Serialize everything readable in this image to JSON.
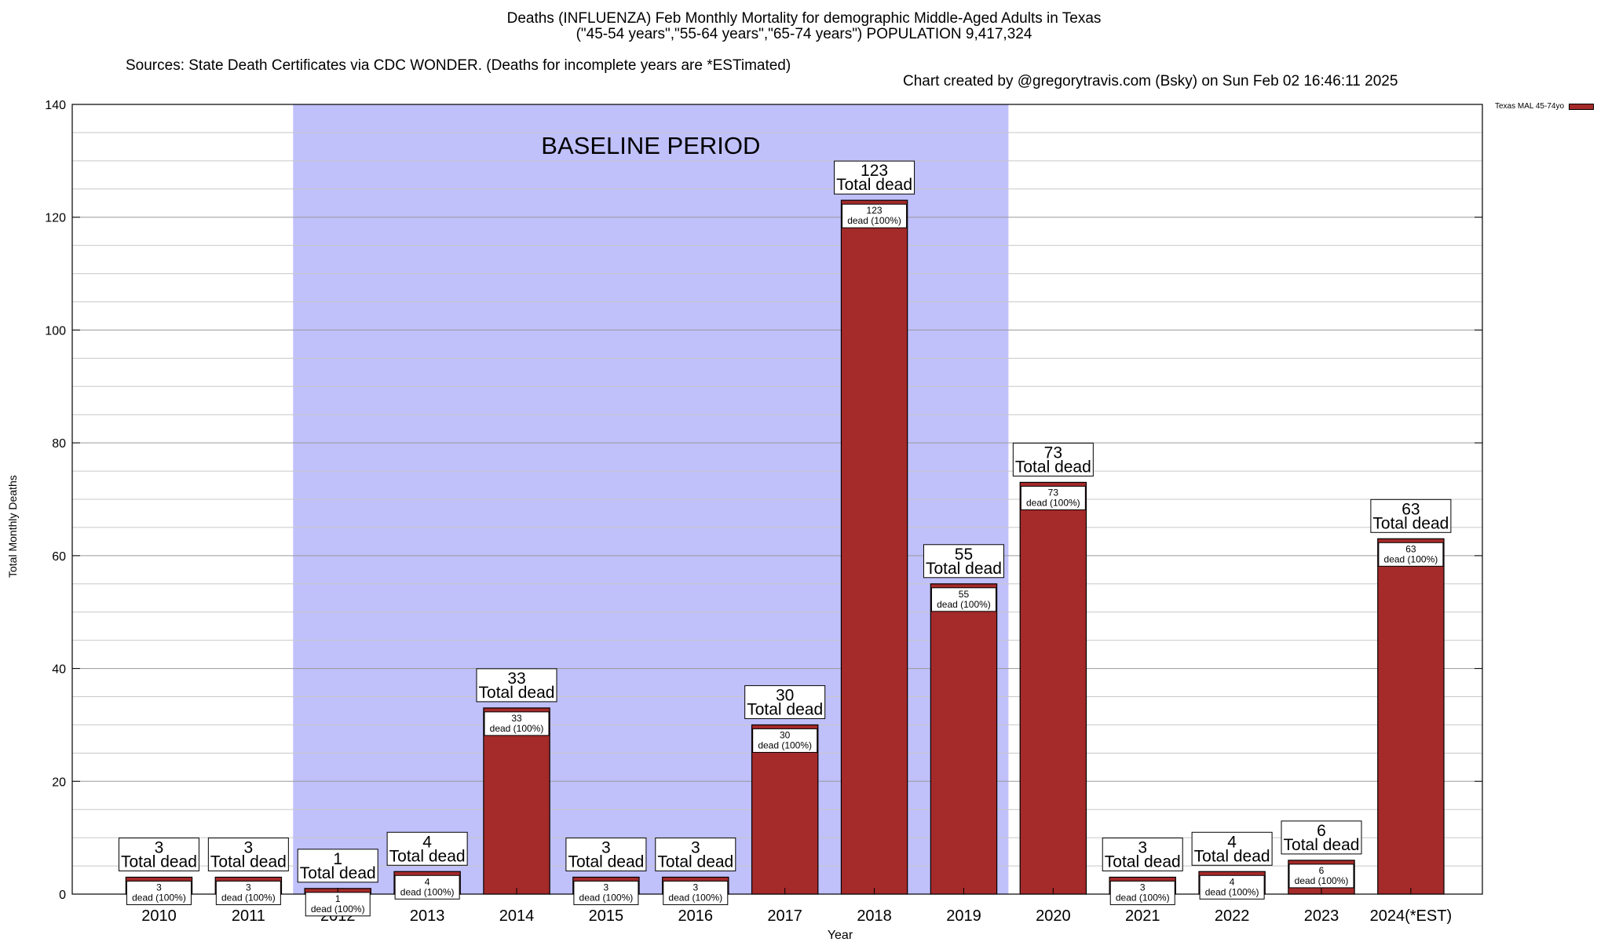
{
  "title_lines": [
    "Deaths (INFLUENZA) Feb Monthly Mortality for demographic Middle-Aged Adults in Texas",
    "(\"45-54 years\",\"55-64 years\",\"65-74 years\") POPULATION 9,417,324"
  ],
  "source_text": "Sources: State Death Certificates via CDC WONDER. (Deaths for incomplete years are *ESTimated)",
  "credit_text": "Chart created by @gregorytravis.com (Bsky) on Sun Feb 02 16:46:11 2025",
  "legend_label": "Texas MAL 45-74yo",
  "colors": {
    "bar": "#a52a2a",
    "baseline": "#c0c0fb"
  },
  "chart_data": {
    "type": "bar",
    "xlabel": "Year",
    "ylabel": "Total Monthly Deaths",
    "ylim": [
      0,
      140
    ],
    "yticks": [
      0,
      20,
      40,
      60,
      80,
      100,
      120,
      140
    ],
    "grid": true,
    "legend_position": "top-right",
    "categories": [
      "2010",
      "2011",
      "2012",
      "2013",
      "2014",
      "2015",
      "2016",
      "2017",
      "2018",
      "2019",
      "2020",
      "2021",
      "2022",
      "2023",
      "2024(*EST)"
    ],
    "series": [
      {
        "name": "Texas MAL 45-74yo",
        "values": [
          3,
          3,
          1,
          4,
          33,
          3,
          3,
          30,
          123,
          55,
          73,
          3,
          4,
          6,
          63
        ]
      }
    ],
    "total_label_suffix": "Total dead",
    "inner_label_suffix": "dead (100%)",
    "shaded_region": {
      "label": "BASELINE PERIOD",
      "from": "2012",
      "to": "2019"
    }
  }
}
